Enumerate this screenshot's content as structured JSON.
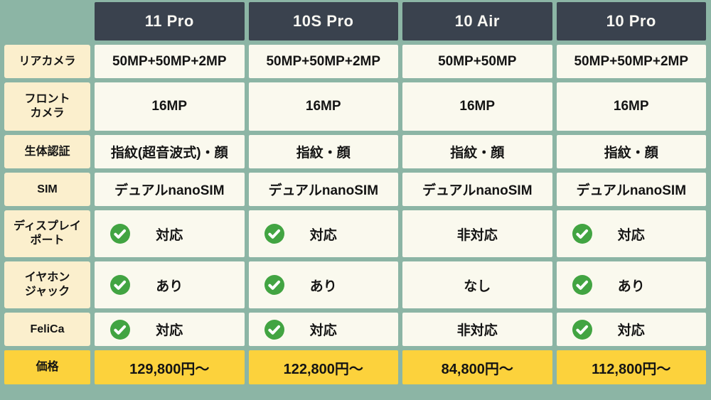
{
  "table": {
    "colors": {
      "page_background": "#8CB5A5",
      "header_background": "#3A424E",
      "header_text": "#F8F7F2",
      "label_background": "#FBEFCD",
      "cell_background": "#FAF9EE",
      "price_background": "#FCD23C",
      "check_green": "#42A442",
      "text": "#141414"
    },
    "columns": [
      "11 Pro",
      "10S Pro",
      "10 Air",
      "10 Pro"
    ],
    "rows": [
      {
        "label": "リアカメラ",
        "cells": [
          {
            "text": "50MP+50MP+2MP"
          },
          {
            "text": "50MP+50MP+2MP"
          },
          {
            "text": "50MP+50MP"
          },
          {
            "text": "50MP+50MP+2MP"
          }
        ]
      },
      {
        "label": "フロント\nカメラ",
        "cells": [
          {
            "text": "16MP"
          },
          {
            "text": "16MP"
          },
          {
            "text": "16MP"
          },
          {
            "text": "16MP"
          }
        ]
      },
      {
        "label": "生体認証",
        "cells": [
          {
            "text": "指紋(超音波式)・顔"
          },
          {
            "text": "指紋・顔"
          },
          {
            "text": "指紋・顔"
          },
          {
            "text": "指紋・顔"
          }
        ]
      },
      {
        "label": "SIM",
        "cells": [
          {
            "text": "デュアルnanoSIM"
          },
          {
            "text": "デュアルnanoSIM"
          },
          {
            "text": "デュアルnanoSIM"
          },
          {
            "text": "デュアルnanoSIM"
          }
        ]
      },
      {
        "label": "ディスプレイ\nポート",
        "cells": [
          {
            "icon": "check",
            "text": "対応"
          },
          {
            "icon": "check",
            "text": "対応"
          },
          {
            "text": "非対応"
          },
          {
            "icon": "check",
            "text": "対応"
          }
        ]
      },
      {
        "label": "イヤホン\nジャック",
        "cells": [
          {
            "icon": "check",
            "text": "あり"
          },
          {
            "icon": "check",
            "text": "あり"
          },
          {
            "text": "なし"
          },
          {
            "icon": "check",
            "text": "あり"
          }
        ]
      },
      {
        "label": "FeliCa",
        "cells": [
          {
            "icon": "check",
            "text": "対応"
          },
          {
            "icon": "check",
            "text": "対応"
          },
          {
            "text": "非対応"
          },
          {
            "icon": "check",
            "text": "対応"
          }
        ]
      },
      {
        "label": "価格",
        "type": "price",
        "cells": [
          {
            "text": "129,800円〜"
          },
          {
            "text": "122,800円〜"
          },
          {
            "text": "84,800円〜"
          },
          {
            "text": "112,800円〜"
          }
        ]
      }
    ]
  }
}
